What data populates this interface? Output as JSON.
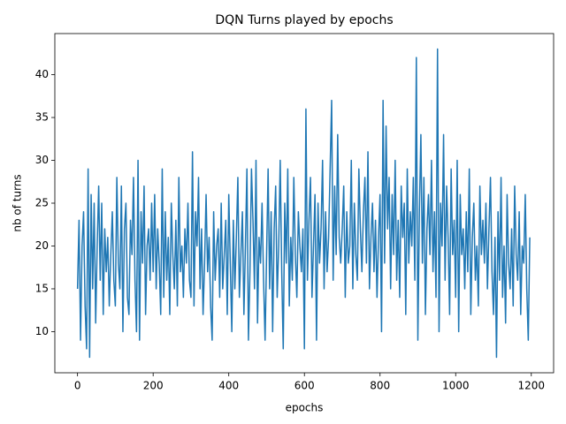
{
  "chart_data": {
    "type": "line",
    "title": "DQN Turns played by epochs",
    "x_label": "epochs",
    "y_label": "nb of turns",
    "xlim": [
      -60,
      1259
    ],
    "ylim": [
      5.2,
      44.8
    ],
    "xticks": [
      0,
      200,
      400,
      600,
      800,
      1000,
      1200
    ],
    "yticks": [
      10,
      15,
      20,
      25,
      30,
      35,
      40
    ],
    "x": [
      0,
      4,
      8,
      12,
      16,
      20,
      24,
      28,
      32,
      36,
      40,
      44,
      48,
      52,
      56,
      60,
      64,
      68,
      72,
      76,
      80,
      84,
      88,
      92,
      96,
      100,
      104,
      108,
      112,
      116,
      120,
      124,
      128,
      132,
      136,
      140,
      144,
      148,
      152,
      156,
      160,
      164,
      168,
      172,
      176,
      180,
      184,
      188,
      192,
      196,
      200,
      204,
      208,
      212,
      216,
      220,
      224,
      228,
      232,
      236,
      240,
      244,
      248,
      252,
      256,
      260,
      264,
      268,
      272,
      276,
      280,
      284,
      288,
      292,
      296,
      300,
      304,
      308,
      312,
      316,
      320,
      324,
      328,
      332,
      336,
      340,
      344,
      348,
      352,
      356,
      360,
      364,
      368,
      372,
      376,
      380,
      384,
      388,
      392,
      396,
      400,
      404,
      408,
      412,
      416,
      420,
      424,
      428,
      432,
      436,
      440,
      444,
      448,
      452,
      456,
      460,
      464,
      468,
      472,
      476,
      480,
      484,
      488,
      492,
      496,
      500,
      504,
      508,
      512,
      516,
      520,
      524,
      528,
      532,
      536,
      540,
      544,
      548,
      552,
      556,
      560,
      564,
      568,
      572,
      576,
      580,
      584,
      588,
      592,
      596,
      600,
      604,
      608,
      612,
      616,
      620,
      624,
      628,
      632,
      636,
      640,
      644,
      648,
      652,
      656,
      660,
      664,
      668,
      672,
      676,
      680,
      684,
      688,
      692,
      696,
      700,
      704,
      708,
      712,
      716,
      720,
      724,
      728,
      732,
      736,
      740,
      744,
      748,
      752,
      756,
      760,
      764,
      768,
      772,
      776,
      780,
      784,
      788,
      792,
      796,
      800,
      804,
      808,
      812,
      816,
      820,
      824,
      828,
      832,
      836,
      840,
      844,
      848,
      852,
      856,
      860,
      864,
      868,
      872,
      876,
      880,
      884,
      888,
      892,
      896,
      900,
      904,
      908,
      912,
      916,
      920,
      924,
      928,
      932,
      936,
      940,
      944,
      948,
      952,
      956,
      960,
      964,
      968,
      972,
      976,
      980,
      984,
      988,
      992,
      996,
      1000,
      1004,
      1008,
      1012,
      1016,
      1020,
      1024,
      1028,
      1032,
      1036,
      1040,
      1044,
      1048,
      1052,
      1056,
      1060,
      1064,
      1068,
      1072,
      1076,
      1080,
      1084,
      1088,
      1092,
      1096,
      1100,
      1104,
      1108,
      1112,
      1116,
      1120,
      1124,
      1128,
      1132,
      1136,
      1140,
      1144,
      1148,
      1152,
      1156,
      1160,
      1164,
      1168,
      1172,
      1176,
      1180,
      1184,
      1188,
      1192,
      1196
    ],
    "series": [
      {
        "color": "#1f77b4",
        "values": [
          15,
          23,
          9,
          20,
          24,
          13,
          8,
          29,
          7,
          26,
          15,
          25,
          11,
          20,
          27,
          16,
          25,
          12,
          22,
          17,
          21,
          13,
          19,
          24,
          16,
          13,
          28,
          18,
          15,
          27,
          10,
          22,
          25,
          14,
          12,
          23,
          19,
          28,
          16,
          10,
          30,
          9,
          24,
          18,
          27,
          12,
          20,
          22,
          16,
          25,
          17,
          26,
          15,
          22,
          18,
          12,
          29,
          14,
          24,
          16,
          21,
          12,
          25,
          19,
          15,
          23,
          13,
          28,
          17,
          20,
          14,
          22,
          18,
          25,
          16,
          14,
          31,
          13,
          24,
          20,
          28,
          15,
          22,
          12,
          18,
          26,
          17,
          21,
          13,
          9,
          24,
          16,
          20,
          22,
          14,
          25,
          15,
          19,
          23,
          12,
          26,
          18,
          10,
          23,
          15,
          21,
          28,
          14,
          19,
          24,
          12,
          20,
          29,
          9,
          17,
          29,
          23,
          15,
          30,
          11,
          21,
          18,
          25,
          16,
          9,
          19,
          29,
          15,
          24,
          10,
          22,
          27,
          14,
          20,
          30,
          17,
          8,
          25,
          18,
          29,
          13,
          21,
          16,
          28,
          19,
          14,
          24,
          20,
          17,
          22,
          8,
          36,
          16,
          23,
          28,
          14,
          20,
          26,
          9,
          25,
          18,
          22,
          30,
          15,
          24,
          17,
          21,
          29,
          37,
          16,
          27,
          19,
          33,
          21,
          18,
          22,
          27,
          14,
          24,
          18,
          20,
          30,
          15,
          25,
          19,
          16,
          29,
          22,
          17,
          24,
          28,
          18,
          31,
          15,
          21,
          25,
          17,
          23,
          14,
          21,
          26,
          10,
          37,
          18,
          34,
          22,
          28,
          15,
          26,
          19,
          30,
          16,
          23,
          14,
          27,
          21,
          25,
          12,
          29,
          18,
          24,
          20,
          28,
          16,
          42,
          9,
          24,
          33,
          18,
          28,
          12,
          22,
          26,
          19,
          30,
          17,
          24,
          14,
          43,
          10,
          25,
          20,
          33,
          16,
          27,
          21,
          12,
          29,
          19,
          23,
          14,
          30,
          10,
          26,
          19,
          22,
          15,
          24,
          17,
          29,
          12,
          21,
          25,
          16,
          20,
          13,
          27,
          19,
          23,
          18,
          25,
          15,
          22,
          28,
          17,
          12,
          21,
          7,
          24,
          16,
          28,
          14,
          20,
          11,
          26,
          18,
          15,
          22,
          13,
          27,
          19,
          16,
          24,
          12,
          20,
          18,
          26,
          15,
          9,
          21
        ]
      }
    ]
  }
}
